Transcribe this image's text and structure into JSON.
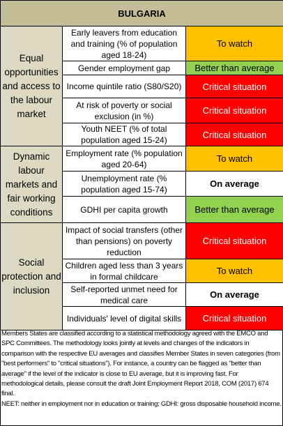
{
  "title": "BULGARIA",
  "groups": [
    {
      "label": "Equal opportunities and access to the labour market",
      "rows": [
        {
          "indicator": "Early leavers from education and training (% of population aged 18-24)",
          "status": "To watch"
        },
        {
          "indicator": "Gender employment gap",
          "status": "Better than average"
        },
        {
          "indicator": "Income quintile ratio (S80/S20)",
          "status": "Critical situation"
        },
        {
          "indicator": "At risk of poverty or social exclusion (in %)",
          "status": "Critical situation"
        },
        {
          "indicator": "Youth NEET (% of total population aged 15-24)",
          "status": "Critical situation"
        }
      ]
    },
    {
      "label": "Dynamic labour markets and fair working conditions",
      "rows": [
        {
          "indicator": "Employment rate (% population aged 20-64)",
          "status": "To watch"
        },
        {
          "indicator": "Unemployment rate (% population aged 15-74)",
          "status": "On average"
        },
        {
          "indicator": "GDHI per capita growth",
          "status": "Better than average"
        }
      ]
    },
    {
      "label": "Social protection and inclusion",
      "rows": [
        {
          "indicator": "Impact of social transfers (other than pensions) on poverty reduction",
          "status": "Critical situation"
        },
        {
          "indicator": "Children aged less than 3 years in formal childcare",
          "status": "To watch"
        },
        {
          "indicator": "Self-reported unmet need for medical care",
          "status": "On average"
        },
        {
          "indicator": "Individuals' level of digital skills",
          "status": "Critical situation"
        }
      ]
    }
  ],
  "status_colors": {
    "To watch": "#ffc000",
    "Better than average": "#92d050",
    "Critical situation": "#ff0000",
    "On average": "#ffffff"
  },
  "notes": [
    "Members States are classified according to a statistical methodology agreed with the EMCO and SPC Committees. The methodology looks jointly at levels and changes of the indicators in comparison with the respective EU averages and classifies Member States in seven categories (from \"best performers\" to \"critical situations\"). For instance, a country can be flagged as \"better than average\" if the level of the indicator is close to EU average, but it is improving fast. For methodological details, please consult the draft Joint Employment Report 2018, COM (2017) 674 final.",
    "NEET: neither in employment nor in education or training; GDHI: gross disposable household income."
  ]
}
